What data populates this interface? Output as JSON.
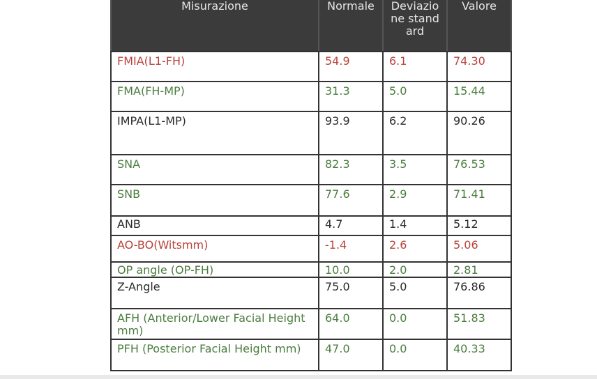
{
  "table": {
    "header": [
      "Misurazione",
      "Normale",
      "Deviazione standard",
      "Valore"
    ],
    "rows": [
      {
        "color": "#b8433c",
        "cells": [
          "FMIA(L1-FH)",
          "54.9",
          "6.1",
          "74.30"
        ]
      },
      {
        "color": "#4b7d3f",
        "cells": [
          "FMA(FH-MP)",
          "31.3",
          "5.0",
          "15.44"
        ]
      },
      {
        "color": "#2a2a2a",
        "cells": [
          "IMPA(L1-MP)",
          "93.9",
          "6.2",
          "90.26"
        ]
      },
      {
        "color": "#4b7d3f",
        "cells": [
          "SNA",
          "82.3",
          "3.5",
          "76.53"
        ]
      },
      {
        "color": "#4b7d3f",
        "cells": [
          "SNB",
          "77.6",
          "2.9",
          "71.41"
        ]
      },
      {
        "color": "#2a2a2a",
        "cells": [
          "ANB",
          "4.7",
          "1.4",
          "5.12"
        ]
      },
      {
        "color": "#b8433c",
        "cells": [
          "AO-BO(Witsmm)",
          "-1.4",
          "2.6",
          "5.06"
        ]
      },
      {
        "color": "#4b7d3f",
        "cells": [
          "OP angle (OP-FH)",
          "10.0",
          "2.0",
          "2.81"
        ]
      },
      {
        "color": "#2a2a2a",
        "cells": [
          "Z-Angle",
          "75.0",
          "5.0",
          "76.86"
        ]
      },
      {
        "color": "#4b7d3f",
        "cells": [
          "AFH (Anterior/Lower Facial Height mm)",
          "64.0",
          "0.0",
          "51.83"
        ]
      },
      {
        "color": "#4b7d3f",
        "cells": [
          "PFH (Posterior Facial Height mm)",
          "47.0",
          "0.0",
          "40.33"
        ]
      }
    ]
  }
}
